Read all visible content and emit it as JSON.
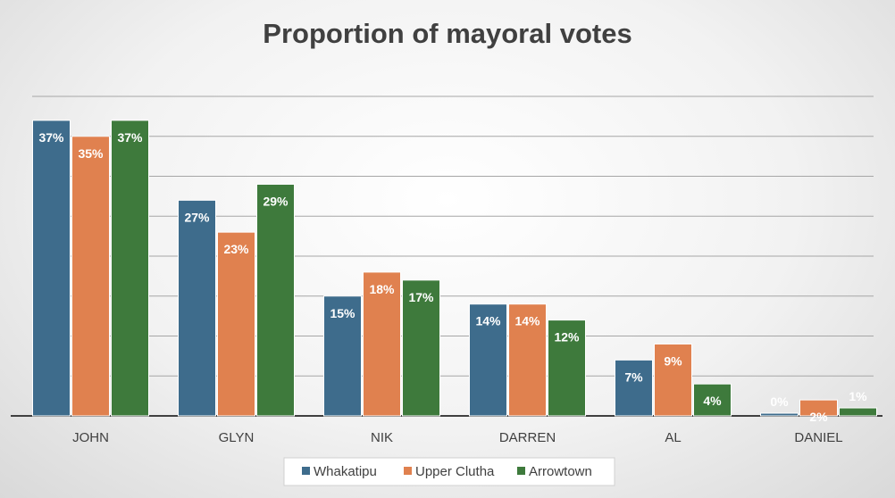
{
  "chart_data": {
    "type": "bar",
    "title": "Proportion of mayoral votes",
    "xlabel": "",
    "ylabel": "",
    "categories": [
      "JOHN",
      "GLYN",
      "NIK",
      "DARREN",
      "AL",
      "DANIEL"
    ],
    "series": [
      {
        "name": "Whakatipu",
        "color": "#3E6C8C",
        "values": [
          37,
          27,
          15,
          14,
          7,
          0
        ],
        "labels": [
          "37%",
          "27%",
          "15%",
          "14%",
          "7%",
          "0%"
        ]
      },
      {
        "name": "Upper Clutha",
        "color": "#E0814F",
        "values": [
          35,
          23,
          18,
          14,
          9,
          2
        ],
        "labels": [
          "35%",
          "23%",
          "18%",
          "14%",
          "9%",
          "2%"
        ]
      },
      {
        "name": "Arrowtown",
        "color": "#3E7A3C",
        "values": [
          37,
          29,
          17,
          12,
          4,
          1
        ],
        "labels": [
          "37%",
          "29%",
          "17%",
          "12%",
          "4%",
          "1%"
        ]
      }
    ],
    "ylim": [
      0,
      40
    ],
    "grid": true,
    "legend_position": "bottom"
  }
}
